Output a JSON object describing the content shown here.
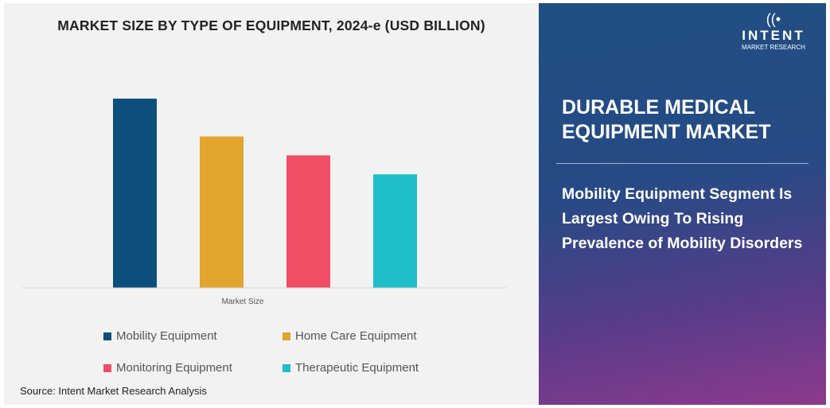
{
  "chart_data": {
    "type": "bar",
    "title": "MARKET SIZE BY TYPE OF EQUIPMENT, 2024-e (USD BILLION)",
    "xlabel": "Market Size",
    "categories": [
      "Market Size"
    ],
    "series": [
      {
        "name": "Mobility Equipment",
        "values": [
          100
        ],
        "color": "#0c4f7c"
      },
      {
        "name": "Home Care Equipment",
        "values": [
          80
        ],
        "color": "#e2a52d"
      },
      {
        "name": "Monitoring Equipment",
        "values": [
          70
        ],
        "color": "#f04e64"
      },
      {
        "name": "Therapeutic Equipment",
        "values": [
          60
        ],
        "color": "#1fbec8"
      }
    ],
    "ylim": [
      0,
      100
    ],
    "grid": false,
    "legend": "bottom",
    "note": "values relative; no y-axis printed"
  },
  "source": "Source: Intent Market Research Analysis",
  "panel": {
    "title_line1": "DURABLE MEDICAL",
    "title_line2": "EQUIPMENT MARKET",
    "text": "Mobility Equipment Segment Is Largest Owing To Rising Prevalence of Mobility Disorders"
  },
  "logo": {
    "name": "INTENT",
    "sub": "MARKET RESEARCH"
  }
}
